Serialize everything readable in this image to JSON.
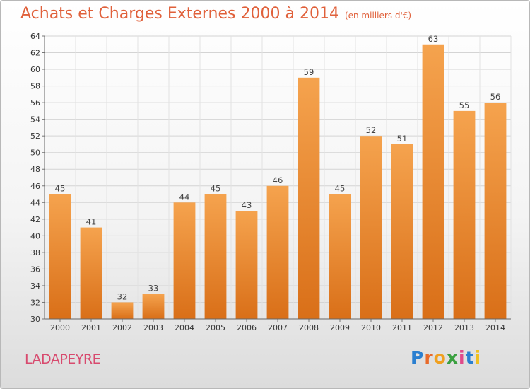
{
  "chart_data": {
    "type": "bar",
    "title": "Achats et Charges Externes 2000 à 2014",
    "subtitle": "(en milliers d'€)",
    "categories": [
      "2000",
      "2001",
      "2002",
      "2003",
      "2004",
      "2005",
      "2006",
      "2007",
      "2008",
      "2009",
      "2010",
      "2011",
      "2012",
      "2013",
      "2014"
    ],
    "values": [
      45,
      41,
      32,
      33,
      44,
      45,
      43,
      46,
      59,
      45,
      52,
      51,
      63,
      55,
      56
    ],
    "ylim": [
      30,
      64
    ],
    "yticks": [
      30,
      32,
      34,
      36,
      38,
      40,
      42,
      44,
      46,
      48,
      50,
      52,
      54,
      56,
      58,
      60,
      62,
      64
    ],
    "grid": true,
    "bar_color_top": "#f5a34e",
    "bar_color_bottom": "#d96f18"
  },
  "footer": {
    "commune": "LADAPEYRE",
    "logo": "Proxiti"
  }
}
